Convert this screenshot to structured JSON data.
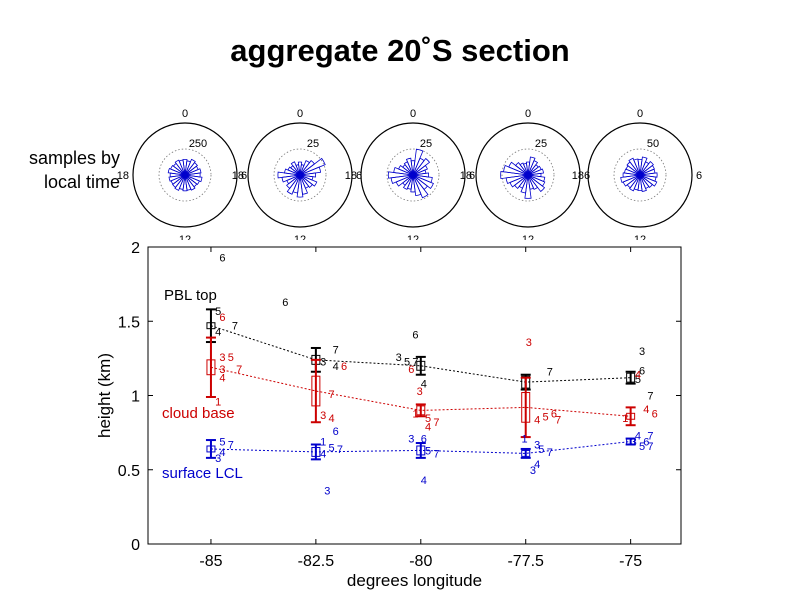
{
  "title": "aggregate 20˚S section",
  "rose_panel": {
    "label_line1": "samples by",
    "label_line2": "local time",
    "hour_labels": {
      "top": "0",
      "bottom": "12",
      "left": "18",
      "right": "6"
    },
    "roses": [
      {
        "ring_label": "250",
        "radii": [
          0.6,
          0.55,
          0.65,
          0.6,
          0.55,
          0.62,
          0.58,
          0.66,
          0.6,
          0.57,
          0.63,
          0.59,
          0.61,
          0.56,
          0.64,
          0.6,
          0.58,
          0.62,
          0.57,
          0.65,
          0.6,
          0.56,
          0.62,
          0.58
        ]
      },
      {
        "ring_label": "25",
        "radii": [
          0.5,
          0.4,
          0.6,
          0.7,
          1.05,
          0.8,
          0.6,
          0.5,
          0.7,
          0.6,
          0.55,
          0.75,
          0.85,
          0.7,
          0.8,
          0.65,
          0.55,
          0.7,
          0.85,
          0.6,
          0.5,
          0.45,
          0.55,
          0.4
        ]
      },
      {
        "ring_label": "25",
        "radii": [
          0.55,
          1.0,
          0.7,
          0.8,
          0.6,
          0.5,
          0.6,
          0.75,
          0.85,
          0.7,
          0.95,
          0.8,
          0.65,
          0.55,
          0.6,
          0.5,
          0.7,
          0.85,
          0.95,
          0.75,
          0.6,
          0.5,
          0.55,
          0.65
        ]
      },
      {
        "ring_label": "25",
        "radii": [
          0.5,
          0.7,
          0.6,
          0.5,
          0.55,
          0.6,
          0.5,
          0.65,
          0.7,
          0.8,
          0.6,
          0.55,
          0.9,
          0.7,
          0.55,
          0.65,
          0.75,
          0.85,
          1.05,
          0.95,
          0.8,
          0.6,
          0.5,
          0.45
        ]
      },
      {
        "ring_label": "50",
        "radii": [
          0.6,
          0.7,
          0.55,
          0.65,
          0.6,
          0.58,
          0.66,
          0.62,
          0.7,
          0.6,
          0.56,
          0.64,
          0.6,
          0.58,
          0.66,
          0.62,
          0.7,
          0.75,
          0.65,
          0.6,
          0.58,
          0.63,
          0.7,
          0.62
        ]
      }
    ]
  },
  "chart_data": {
    "type": "line",
    "xlabel": "degrees longitude",
    "ylabel": "height (km)",
    "xlim": [
      -86.5,
      -73.8
    ],
    "ylim": [
      0,
      2
    ],
    "xticks": [
      -85,
      -82.5,
      -80,
      -77.5,
      -75
    ],
    "xtick_labels": [
      "-85",
      "-82.5",
      "-80",
      "-77.5",
      "-75"
    ],
    "yticks": [
      0,
      0.5,
      1,
      1.5,
      2
    ],
    "ytick_labels": [
      "0",
      "0.5",
      "1",
      "1.5",
      "2"
    ],
    "colors": {
      "pbl": "#000000",
      "cloud": "#cc0000",
      "lcl": "#0000cc"
    },
    "series": [
      {
        "key": "pbl",
        "name": "PBL top",
        "x": [
          -85,
          -82.5,
          -80,
          -77.5,
          -75
        ],
        "y": [
          1.47,
          1.24,
          1.2,
          1.09,
          1.12
        ],
        "err": [
          0.11,
          0.08,
          0.06,
          0.05,
          0.04
        ],
        "box": [
          0.02,
          0.03,
          0.03,
          0.04,
          0.03
        ]
      },
      {
        "key": "cloud",
        "name": "cloud base",
        "x": [
          -85,
          -82.5,
          -80,
          -77.5,
          -75
        ],
        "y": [
          1.19,
          1.03,
          0.9,
          0.92,
          0.86
        ],
        "err": [
          0.2,
          0.21,
          0.04,
          0.2,
          0.06
        ],
        "box": [
          0.05,
          0.1,
          0.03,
          0.1,
          0.02
        ]
      },
      {
        "key": "lcl",
        "name": "surface LCL",
        "x": [
          -85,
          -82.5,
          -80,
          -77.5,
          -75
        ],
        "y": [
          0.64,
          0.62,
          0.63,
          0.61,
          0.69
        ],
        "err": [
          0.06,
          0.05,
          0.05,
          0.03,
          0.02
        ],
        "box": [
          0.02,
          0.03,
          0.03,
          0.02,
          0.02
        ]
      }
    ],
    "month_labels": [
      {
        "t": "6",
        "x": -84.8,
        "y": 1.93,
        "c": "pbl"
      },
      {
        "t": "6",
        "x": -83.3,
        "y": 1.63,
        "c": "pbl"
      },
      {
        "t": "5",
        "x": -84.9,
        "y": 1.57,
        "c": "pbl"
      },
      {
        "t": "6",
        "x": -84.8,
        "y": 1.53,
        "c": "cloud"
      },
      {
        "t": "7",
        "x": -84.5,
        "y": 1.47,
        "c": "pbl"
      },
      {
        "t": "4",
        "x": -84.9,
        "y": 1.43,
        "c": "pbl"
      },
      {
        "t": "6",
        "x": -80.2,
        "y": 1.41,
        "c": "pbl"
      },
      {
        "t": "7",
        "x": -82.1,
        "y": 1.31,
        "c": "pbl"
      },
      {
        "t": "3",
        "x": -82.4,
        "y": 1.23,
        "c": "pbl"
      },
      {
        "t": "4",
        "x": -82.1,
        "y": 1.2,
        "c": "pbl"
      },
      {
        "t": "6",
        "x": -81.9,
        "y": 1.2,
        "c": "cloud"
      },
      {
        "t": "3",
        "x": -80.6,
        "y": 1.26,
        "c": "pbl"
      },
      {
        "t": "5",
        "x": -80.4,
        "y": 1.23,
        "c": "pbl"
      },
      {
        "t": "7",
        "x": -80.2,
        "y": 1.23,
        "c": "pbl"
      },
      {
        "t": "6",
        "x": -80.3,
        "y": 1.18,
        "c": "cloud"
      },
      {
        "t": "3",
        "x": -77.5,
        "y": 1.36,
        "c": "cloud"
      },
      {
        "t": "7",
        "x": -77.0,
        "y": 1.16,
        "c": "pbl"
      },
      {
        "t": "3",
        "x": -74.8,
        "y": 1.3,
        "c": "pbl"
      },
      {
        "t": "6",
        "x": -74.8,
        "y": 1.17,
        "c": "pbl"
      },
      {
        "t": "5",
        "x": -74.9,
        "y": 1.11,
        "c": "pbl"
      },
      {
        "t": "4",
        "x": -74.9,
        "y": 1.14,
        "c": "cloud"
      },
      {
        "t": "7",
        "x": -74.6,
        "y": 1.0,
        "c": "pbl"
      },
      {
        "t": "3",
        "x": -84.8,
        "y": 1.26,
        "c": "cloud"
      },
      {
        "t": "5",
        "x": -84.6,
        "y": 1.26,
        "c": "cloud"
      },
      {
        "t": "3",
        "x": -84.8,
        "y": 1.18,
        "c": "cloud"
      },
      {
        "t": "7",
        "x": -84.4,
        "y": 1.18,
        "c": "cloud"
      },
      {
        "t": "4",
        "x": -84.8,
        "y": 1.12,
        "c": "cloud"
      },
      {
        "t": "1",
        "x": -84.9,
        "y": 0.96,
        "c": "cloud"
      },
      {
        "t": "7",
        "x": -82.2,
        "y": 1.01,
        "c": "cloud"
      },
      {
        "t": "3",
        "x": -82.4,
        "y": 0.87,
        "c": "cloud"
      },
      {
        "t": "4",
        "x": -82.2,
        "y": 0.85,
        "c": "cloud"
      },
      {
        "t": "3",
        "x": -80.1,
        "y": 1.03,
        "c": "cloud"
      },
      {
        "t": "4",
        "x": -80.0,
        "y": 1.08,
        "c": "pbl"
      },
      {
        "t": "5",
        "x": -79.9,
        "y": 0.85,
        "c": "cloud"
      },
      {
        "t": "7",
        "x": -79.7,
        "y": 0.82,
        "c": "cloud"
      },
      {
        "t": "1",
        "x": -80.2,
        "y": 0.88,
        "c": "cloud"
      },
      {
        "t": "4",
        "x": -79.9,
        "y": 0.79,
        "c": "cloud"
      },
      {
        "t": "6",
        "x": -76.9,
        "y": 0.88,
        "c": "cloud"
      },
      {
        "t": "5",
        "x": -77.1,
        "y": 0.86,
        "c": "cloud"
      },
      {
        "t": "7",
        "x": -76.8,
        "y": 0.84,
        "c": "cloud"
      },
      {
        "t": "4",
        "x": -77.3,
        "y": 0.84,
        "c": "cloud"
      },
      {
        "t": "4",
        "x": -74.7,
        "y": 0.91,
        "c": "cloud"
      },
      {
        "t": "6",
        "x": -74.5,
        "y": 0.88,
        "c": "cloud"
      },
      {
        "t": "1",
        "x": -75.2,
        "y": 0.85,
        "c": "cloud"
      },
      {
        "t": "6",
        "x": -82.1,
        "y": 0.76,
        "c": "lcl"
      },
      {
        "t": "1",
        "x": -82.4,
        "y": 0.69,
        "c": "lcl"
      },
      {
        "t": "5",
        "x": -82.2,
        "y": 0.65,
        "c": "lcl"
      },
      {
        "t": "7",
        "x": -82.0,
        "y": 0.64,
        "c": "lcl"
      },
      {
        "t": "4",
        "x": -82.4,
        "y": 0.61,
        "c": "lcl"
      },
      {
        "t": "3",
        "x": -82.3,
        "y": 0.36,
        "c": "lcl"
      },
      {
        "t": "5",
        "x": -84.8,
        "y": 0.69,
        "c": "lcl"
      },
      {
        "t": "7",
        "x": -84.6,
        "y": 0.67,
        "c": "lcl"
      },
      {
        "t": "4",
        "x": -84.8,
        "y": 0.62,
        "c": "lcl"
      },
      {
        "t": "3",
        "x": -84.9,
        "y": 0.58,
        "c": "lcl"
      },
      {
        "t": "3",
        "x": -80.3,
        "y": 0.71,
        "c": "lcl"
      },
      {
        "t": "6",
        "x": -80.0,
        "y": 0.71,
        "c": "lcl"
      },
      {
        "t": "5",
        "x": -79.9,
        "y": 0.63,
        "c": "lcl"
      },
      {
        "t": "7",
        "x": -79.7,
        "y": 0.61,
        "c": "lcl"
      },
      {
        "t": "4",
        "x": -80.0,
        "y": 0.43,
        "c": "lcl"
      },
      {
        "t": "1",
        "x": -77.6,
        "y": 0.71,
        "c": "lcl"
      },
      {
        "t": "3",
        "x": -77.3,
        "y": 0.67,
        "c": "lcl"
      },
      {
        "t": "5",
        "x": -77.2,
        "y": 0.64,
        "c": "lcl"
      },
      {
        "t": "7",
        "x": -77.0,
        "y": 0.62,
        "c": "lcl"
      },
      {
        "t": "4",
        "x": -77.3,
        "y": 0.54,
        "c": "lcl"
      },
      {
        "t": "3",
        "x": -77.4,
        "y": 0.5,
        "c": "lcl"
      },
      {
        "t": "4",
        "x": -74.9,
        "y": 0.73,
        "c": "lcl"
      },
      {
        "t": "7",
        "x": -74.6,
        "y": 0.73,
        "c": "lcl"
      },
      {
        "t": "6",
        "x": -74.7,
        "y": 0.69,
        "c": "lcl"
      },
      {
        "t": "3",
        "x": -75.0,
        "y": 0.69,
        "c": "lcl"
      },
      {
        "t": "5",
        "x": -74.8,
        "y": 0.66,
        "c": "lcl"
      },
      {
        "t": "7",
        "x": -74.6,
        "y": 0.66,
        "c": "lcl"
      }
    ]
  }
}
